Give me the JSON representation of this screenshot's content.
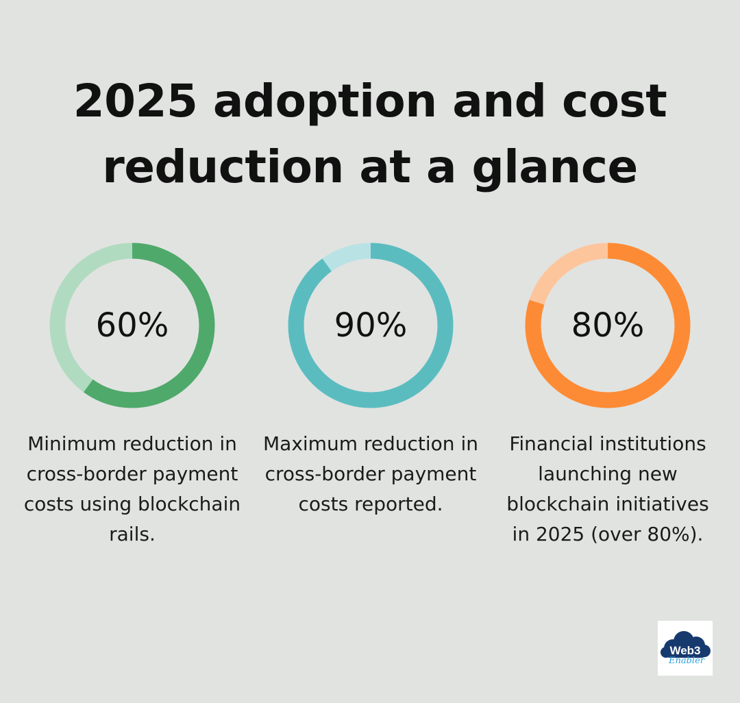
{
  "title_line1": "2025 adoption and cost",
  "title_line2": "reduction at a glance",
  "chart_data": [
    {
      "type": "pie",
      "variant": "donut",
      "value": 60,
      "label": "60%",
      "description": "Minimum reduction in cross-border payment costs using blockchain rails.",
      "color": "#4fa96b",
      "track_color": "#b1dbc0"
    },
    {
      "type": "pie",
      "variant": "donut",
      "value": 90,
      "label": "90%",
      "description": "Maximum reduction in cross-border payment costs reported.",
      "color": "#5bbcc0",
      "track_color": "#b9e2e5"
    },
    {
      "type": "pie",
      "variant": "donut",
      "value": 80,
      "label": "80%",
      "description": "Financial institutions launching new blockchain initiatives in 2025 (over 80%).",
      "color": "#fd8b35",
      "track_color": "#fdc59c"
    }
  ],
  "logo": {
    "text": "Web3 Enabler",
    "cloud_color": "#173a6e",
    "script_color": "#2aa3dc"
  }
}
